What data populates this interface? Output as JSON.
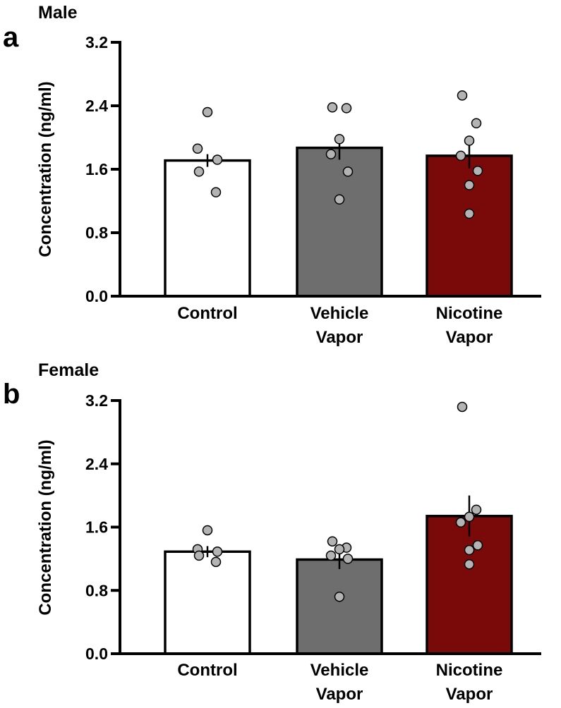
{
  "figure": {
    "y_axis_title": "Concentration (ng/ml)"
  },
  "chart_data": [
    {
      "type": "bar",
      "panel_label": "a",
      "title": "Male",
      "ylabel": "Concentration (ng/ml)",
      "xlabel": "",
      "ylim": [
        0,
        3.2
      ],
      "yticks": [
        "0.0",
        "0.8",
        "1.6",
        "2.4",
        "3.2"
      ],
      "ytick_values": [
        0,
        0.8,
        1.6,
        2.4,
        3.2
      ],
      "categories": [
        {
          "line1": "Control",
          "line2": ""
        },
        {
          "line1": "Vehicle",
          "line2": "Vapor"
        },
        {
          "line1": "Nicotine",
          "line2": "Vapor"
        }
      ],
      "values": [
        1.71,
        1.87,
        1.77
      ],
      "sem": [
        0.08,
        0.15,
        0.16
      ],
      "colors": [
        "#ffffff",
        "#6e6e6e",
        "#7a0a0a"
      ],
      "points": [
        [
          2.32,
          1.86,
          1.72,
          1.57,
          1.31
        ],
        [
          2.38,
          2.37,
          1.98,
          1.79,
          1.57,
          1.22
        ],
        [
          2.53,
          2.18,
          1.96,
          1.77,
          1.58,
          1.4,
          1.04
        ]
      ]
    },
    {
      "type": "bar",
      "panel_label": "b",
      "title": "Female",
      "ylabel": "Concentration (ng/ml)",
      "xlabel": "",
      "ylim": [
        0,
        3.2
      ],
      "yticks": [
        "0.0",
        "0.8",
        "1.6",
        "2.4",
        "3.2"
      ],
      "ytick_values": [
        0,
        0.8,
        1.6,
        2.4,
        3.2
      ],
      "categories": [
        {
          "line1": "Control",
          "line2": ""
        },
        {
          "line1": "Vehicle",
          "line2": "Vapor"
        },
        {
          "line1": "Nicotine",
          "line2": "Vapor"
        }
      ],
      "values": [
        1.29,
        1.19,
        1.74
      ],
      "sem": [
        0.07,
        0.12,
        0.26
      ],
      "colors": [
        "#ffffff",
        "#6e6e6e",
        "#7a0a0a"
      ],
      "points": [
        [
          1.56,
          1.32,
          1.29,
          1.24,
          1.16
        ],
        [
          1.42,
          1.34,
          1.32,
          1.24,
          1.2,
          0.72
        ],
        [
          3.12,
          1.82,
          1.73,
          1.66,
          1.37,
          1.31,
          1.13
        ]
      ]
    }
  ]
}
